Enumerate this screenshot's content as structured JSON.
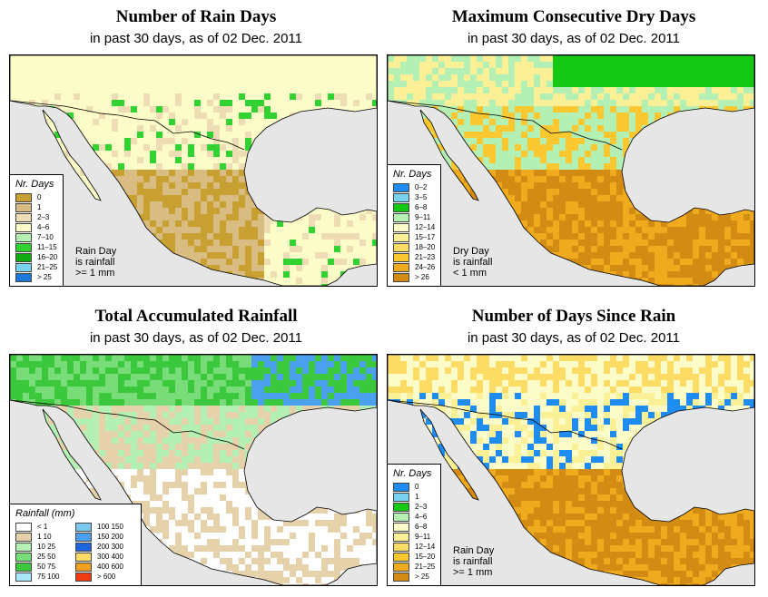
{
  "colors": {
    "ocean": "#e6e6e6",
    "border": "#000000"
  },
  "panels": [
    {
      "title": "Number of Rain Days",
      "subtitle": "in past 30 days, as of  02 Dec. 2011",
      "legend_title": "Nr. Days",
      "legend": [
        {
          "label": "0",
          "color": "#c8a032"
        },
        {
          "label": "1",
          "color": "#d8bc82"
        },
        {
          "label": "2–3",
          "color": "#eedcb4"
        },
        {
          "label": "4–6",
          "color": "#fcfcc8"
        },
        {
          "label": "7–10",
          "color": "#b4f0b4"
        },
        {
          "label": "11–15",
          "color": "#32d232"
        },
        {
          "label": "16–20",
          "color": "#14aa14"
        },
        {
          "label": "21–25",
          "color": "#78d2f0"
        },
        {
          "label": "> 25",
          "color": "#1e78dc"
        }
      ],
      "note": [
        "Rain Day",
        "is rainfall",
        ">= 1 mm"
      ]
    },
    {
      "title": "Maximum Consecutive Dry Days",
      "subtitle": "in past 30 days, as of  02 Dec. 2011",
      "legend_title": "Nr. Days",
      "legend": [
        {
          "label": "0–2",
          "color": "#1e8cf0"
        },
        {
          "label": "3–5",
          "color": "#78d2f0"
        },
        {
          "label": "6–8",
          "color": "#14c814"
        },
        {
          "label": "9–11",
          "color": "#b4f0b4"
        },
        {
          "label": "12–14",
          "color": "#fcfcc8"
        },
        {
          "label": "15–17",
          "color": "#fcf096"
        },
        {
          "label": "18–20",
          "color": "#fcdc64"
        },
        {
          "label": "21–23",
          "color": "#fcc832"
        },
        {
          "label": "24–26",
          "color": "#f0aa1e"
        },
        {
          "label": "> 26",
          "color": "#d28c14"
        }
      ],
      "note": [
        "Dry Day",
        "is rainfall",
        "< 1 mm"
      ]
    },
    {
      "title": "Total Accumulated Rainfall",
      "subtitle": "in past 30 days, as of  02 Dec. 2011",
      "legend_title": "Rainfall (mm)",
      "legend": [
        {
          "label": "< 1",
          "color": "#ffffff"
        },
        {
          "label": "1    10",
          "color": "#e6d2aa"
        },
        {
          "label": "10    25",
          "color": "#b4f0b4"
        },
        {
          "label": "25    50",
          "color": "#78dc78"
        },
        {
          "label": "50    75",
          "color": "#3cc83c"
        },
        {
          "label": "75    100",
          "color": "#aae6fa"
        },
        {
          "label": "100    150",
          "color": "#78c8f0"
        },
        {
          "label": "150    200",
          "color": "#4ba0f0"
        },
        {
          "label": "200    300",
          "color": "#1e64dc"
        },
        {
          "label": "300    400",
          "color": "#fcdc64"
        },
        {
          "label": "400    600",
          "color": "#f0a01e"
        },
        {
          "label": "> 600",
          "color": "#f03c14"
        }
      ],
      "note": []
    },
    {
      "title": "Number of Days Since Rain",
      "subtitle": "in past 30 days, as of  02 Dec. 2011",
      "legend_title": "Nr. Days",
      "legend": [
        {
          "label": "0",
          "color": "#1e8cf0"
        },
        {
          "label": "1",
          "color": "#78d2f0"
        },
        {
          "label": "2–3",
          "color": "#14c814"
        },
        {
          "label": "4–6",
          "color": "#b4f0b4"
        },
        {
          "label": "6–8",
          "color": "#fcfcc8"
        },
        {
          "label": "9–11",
          "color": "#fcf096"
        },
        {
          "label": "12–14",
          "color": "#fcdc64"
        },
        {
          "label": "15–20",
          "color": "#fcc832"
        },
        {
          "label": "21–25",
          "color": "#f0aa1e"
        },
        {
          "label": "> 25",
          "color": "#d28c14"
        }
      ],
      "note": [
        "Rain Day",
        "is rainfall",
        ">= 1 mm"
      ]
    }
  ]
}
